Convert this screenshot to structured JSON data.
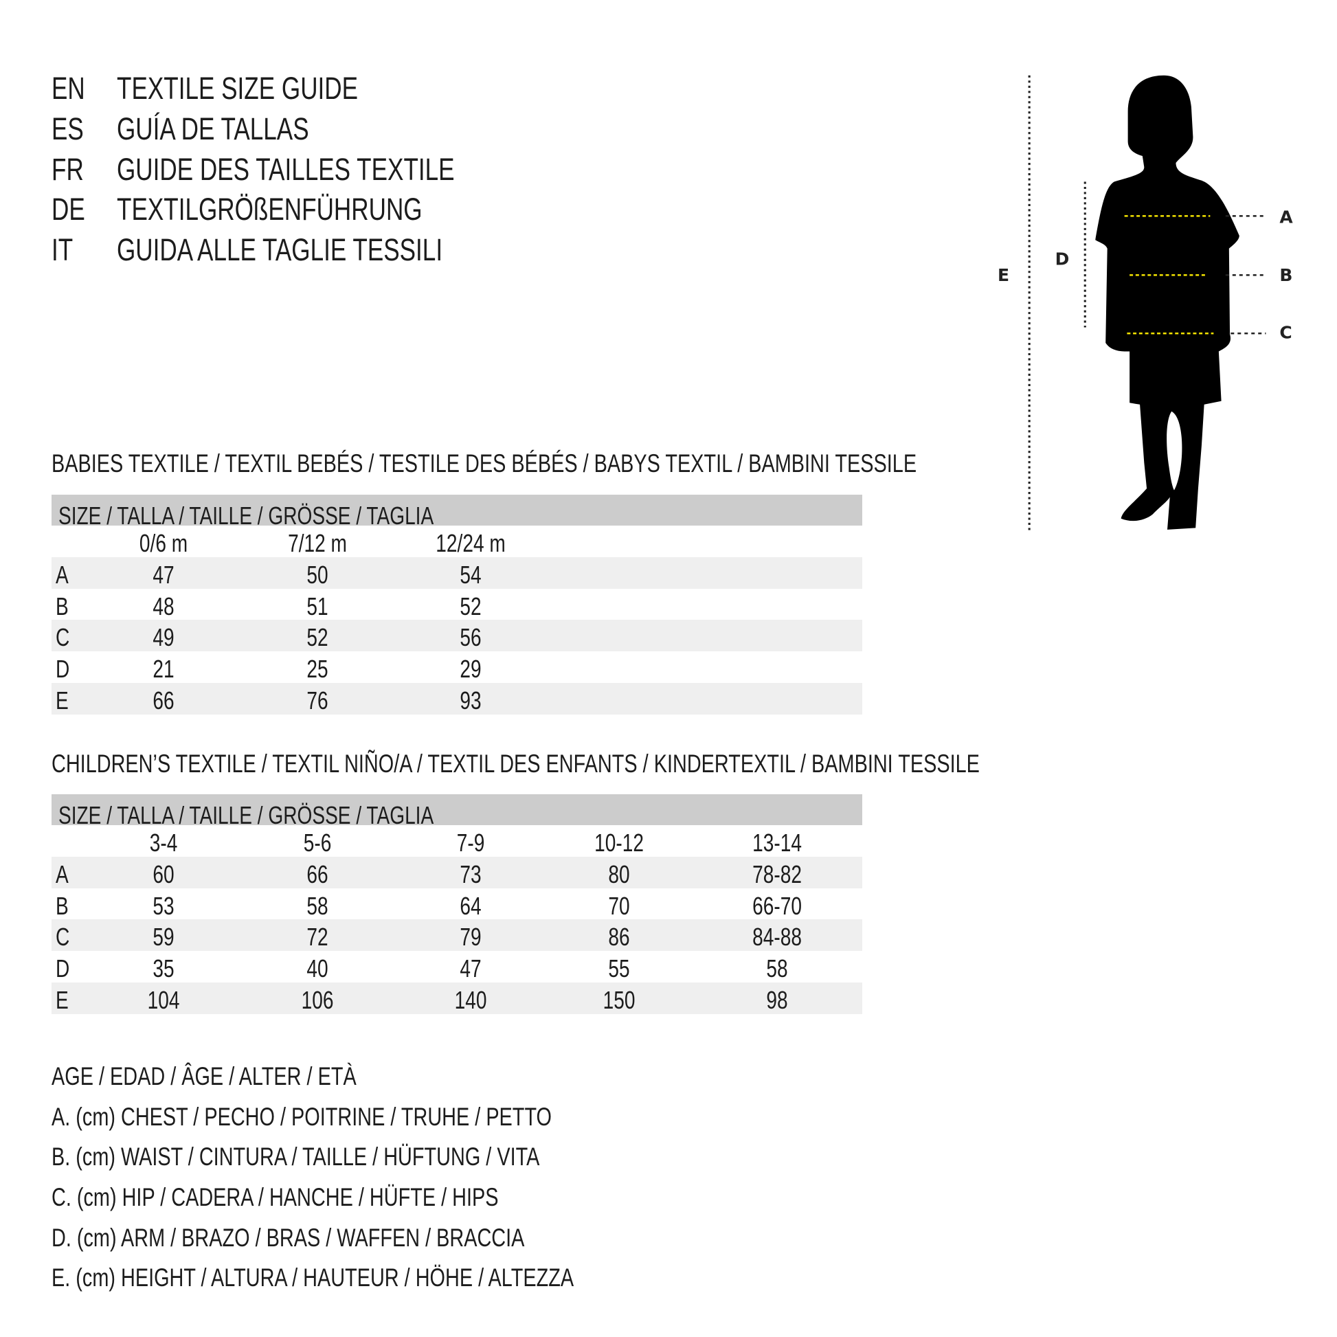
{
  "titles": [
    {
      "code": "EN",
      "text": "TEXTILE SIZE GUIDE"
    },
    {
      "code": "ES",
      "text": "GUÍA DE TALLAS"
    },
    {
      "code": "FR",
      "text": "GUIDE DES TAILLES TEXTILE"
    },
    {
      "code": "DE",
      "text": "TEXTILGRÖßENFÜHRUNG"
    },
    {
      "code": "IT",
      "text": "GUIDA ALLE TAGLIE TESSILI"
    }
  ],
  "babies": {
    "heading": "BABIES TEXTILE / TEXTIL BEBÉS / TESTILE DES BÉBÉS / BABYS TEXTIL / BAMBINI TESSILE",
    "size_header": "SIZE / TALLA / TAILLE / GRÖSSE / TAGLIA",
    "columns": [
      "0/6 m",
      "7/12 m",
      "12/24 m"
    ],
    "rows": [
      {
        "label": "A",
        "values": [
          "47",
          "50",
          "54"
        ]
      },
      {
        "label": "B",
        "values": [
          "48",
          "51",
          "52"
        ]
      },
      {
        "label": "C",
        "values": [
          "49",
          "52",
          "56"
        ]
      },
      {
        "label": "D",
        "values": [
          "21",
          "25",
          "29"
        ]
      },
      {
        "label": "E",
        "values": [
          "66",
          "76",
          "93"
        ]
      }
    ]
  },
  "children": {
    "heading": "CHILDREN’S TEXTILE / TEXTIL NIÑO/A / TEXTIL DES ENFANTS / KINDERTEXTIL / BAMBINI TESSILE",
    "size_header": "SIZE / TALLA / TAILLE / GRÖSSE / TAGLIA",
    "columns": [
      "3-4",
      "5-6",
      "7-9",
      "10-12",
      "13-14"
    ],
    "rows": [
      {
        "label": "A",
        "values": [
          "60",
          "66",
          "73",
          "80",
          "78-82"
        ]
      },
      {
        "label": "B",
        "values": [
          "53",
          "58",
          "64",
          "70",
          "66-70"
        ]
      },
      {
        "label": "C",
        "values": [
          "59",
          "72",
          "79",
          "86",
          "84-88"
        ]
      },
      {
        "label": "D",
        "values": [
          "35",
          "40",
          "47",
          "55",
          "58"
        ]
      },
      {
        "label": "E",
        "values": [
          "104",
          "106",
          "140",
          "150",
          "98"
        ]
      }
    ]
  },
  "legend": [
    "AGE / EDAD / ÂGE / ALTER / ETÀ",
    "A. (cm) CHEST / PECHO / POITRINE / TRUHE / PETTO",
    "B. (cm) WAIST / CINTURA / TAILLE / HÜFTUNG / VITA",
    "C. (cm) HIP / CADERA / HANCHE / HÜFTE / HIPS",
    "D. (cm) ARM / BRAZO / BRAS / WAFFEN / BRACCIA",
    "E. (cm) HEIGHT / ALTURA / HAUTEUR / HÖHE / ALTEZZA"
  ],
  "figure": {
    "icon": "child-silhouette-icon",
    "labels": {
      "A": "A",
      "B": "B",
      "C": "C",
      "D": "D",
      "E": "E"
    },
    "measure_line_color": "#f2e200",
    "silhouette_color": "#000000"
  }
}
